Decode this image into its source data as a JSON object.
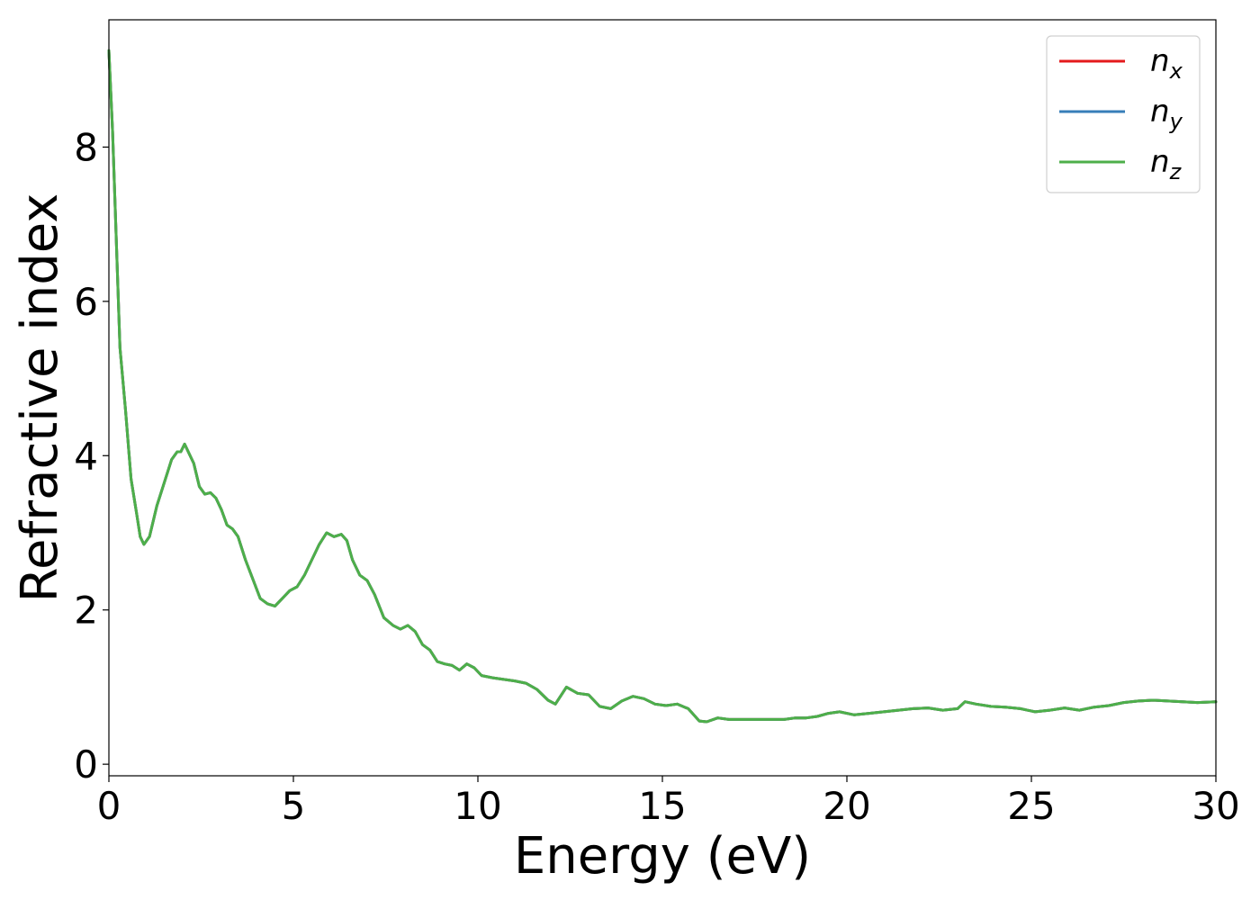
{
  "chart_data": {
    "type": "line",
    "title": "",
    "xlabel": "Energy (eV)",
    "ylabel": "Refractive index",
    "xlim": [
      0,
      30
    ],
    "ylim": [
      -0.15,
      9.65
    ],
    "xticks": [
      0,
      5,
      10,
      15,
      20,
      25,
      30
    ],
    "yticks": [
      0,
      2,
      4,
      6,
      8
    ],
    "grid": false,
    "legend_position": "top-right",
    "x": [
      0,
      0.1,
      0.2,
      0.3,
      0.45,
      0.6,
      0.75,
      0.85,
      0.95,
      1.1,
      1.3,
      1.5,
      1.7,
      1.85,
      1.95,
      2.05,
      2.15,
      2.3,
      2.45,
      2.6,
      2.75,
      2.9,
      3.05,
      3.2,
      3.35,
      3.5,
      3.7,
      3.9,
      4.1,
      4.3,
      4.5,
      4.7,
      4.9,
      5.1,
      5.3,
      5.5,
      5.7,
      5.9,
      6.1,
      6.3,
      6.45,
      6.6,
      6.8,
      7.0,
      7.2,
      7.45,
      7.7,
      7.9,
      8.1,
      8.3,
      8.5,
      8.7,
      8.9,
      9.1,
      9.3,
      9.5,
      9.7,
      9.9,
      10.1,
      10.4,
      10.7,
      11.0,
      11.3,
      11.6,
      11.9,
      12.1,
      12.4,
      12.7,
      13.0,
      13.3,
      13.6,
      13.9,
      14.2,
      14.5,
      14.8,
      15.1,
      15.4,
      15.7,
      16.0,
      16.2,
      16.5,
      16.8,
      17.1,
      17.4,
      17.7,
      18.0,
      18.3,
      18.6,
      18.9,
      19.2,
      19.5,
      19.8,
      20.2,
      20.6,
      21.0,
      21.4,
      21.8,
      22.2,
      22.6,
      23.0,
      23.2,
      23.5,
      23.9,
      24.3,
      24.7,
      25.1,
      25.5,
      25.9,
      26.3,
      26.7,
      27.1,
      27.5,
      27.9,
      28.3,
      28.7,
      29.1,
      29.5,
      30.0
    ],
    "series": [
      {
        "name": "n_x",
        "color": "#e41a1c",
        "y": [
          9.25,
          8.2,
          6.8,
          5.4,
          4.6,
          3.7,
          3.25,
          2.95,
          2.85,
          2.95,
          3.35,
          3.65,
          3.95,
          4.05,
          4.05,
          4.15,
          4.05,
          3.9,
          3.6,
          3.5,
          3.52,
          3.45,
          3.3,
          3.1,
          3.05,
          2.95,
          2.65,
          2.4,
          2.15,
          2.08,
          2.05,
          2.15,
          2.25,
          2.3,
          2.45,
          2.65,
          2.85,
          3.0,
          2.95,
          2.98,
          2.9,
          2.65,
          2.45,
          2.38,
          2.2,
          1.9,
          1.8,
          1.75,
          1.8,
          1.72,
          1.55,
          1.48,
          1.33,
          1.3,
          1.28,
          1.22,
          1.3,
          1.25,
          1.15,
          1.12,
          1.1,
          1.08,
          1.05,
          0.97,
          0.83,
          0.78,
          1.0,
          0.92,
          0.9,
          0.75,
          0.72,
          0.82,
          0.88,
          0.85,
          0.78,
          0.76,
          0.78,
          0.72,
          0.56,
          0.55,
          0.6,
          0.58,
          0.58,
          0.58,
          0.58,
          0.58,
          0.58,
          0.6,
          0.6,
          0.62,
          0.66,
          0.68,
          0.64,
          0.66,
          0.68,
          0.7,
          0.72,
          0.73,
          0.7,
          0.72,
          0.81,
          0.78,
          0.75,
          0.74,
          0.72,
          0.68,
          0.7,
          0.73,
          0.7,
          0.74,
          0.76,
          0.8,
          0.82,
          0.83,
          0.82,
          0.81,
          0.8,
          0.81
        ]
      },
      {
        "name": "n_y",
        "color": "#377eb8",
        "y": [
          9.25,
          8.2,
          6.8,
          5.4,
          4.6,
          3.7,
          3.25,
          2.95,
          2.85,
          2.95,
          3.35,
          3.65,
          3.95,
          4.05,
          4.05,
          4.15,
          4.05,
          3.9,
          3.6,
          3.5,
          3.52,
          3.45,
          3.3,
          3.1,
          3.05,
          2.95,
          2.65,
          2.4,
          2.15,
          2.08,
          2.05,
          2.15,
          2.25,
          2.3,
          2.45,
          2.65,
          2.85,
          3.0,
          2.95,
          2.98,
          2.9,
          2.65,
          2.45,
          2.38,
          2.2,
          1.9,
          1.8,
          1.75,
          1.8,
          1.72,
          1.55,
          1.48,
          1.33,
          1.3,
          1.28,
          1.22,
          1.3,
          1.25,
          1.15,
          1.12,
          1.1,
          1.08,
          1.05,
          0.97,
          0.83,
          0.78,
          1.0,
          0.92,
          0.9,
          0.75,
          0.72,
          0.82,
          0.88,
          0.85,
          0.78,
          0.76,
          0.78,
          0.72,
          0.56,
          0.55,
          0.6,
          0.58,
          0.58,
          0.58,
          0.58,
          0.58,
          0.58,
          0.6,
          0.6,
          0.62,
          0.66,
          0.68,
          0.64,
          0.66,
          0.68,
          0.7,
          0.72,
          0.73,
          0.7,
          0.72,
          0.81,
          0.78,
          0.75,
          0.74,
          0.72,
          0.68,
          0.7,
          0.73,
          0.7,
          0.74,
          0.76,
          0.8,
          0.82,
          0.83,
          0.82,
          0.81,
          0.8,
          0.81
        ]
      },
      {
        "name": "n_z",
        "color": "#4daf4a",
        "y": [
          9.25,
          8.2,
          6.8,
          5.4,
          4.6,
          3.7,
          3.25,
          2.95,
          2.85,
          2.95,
          3.35,
          3.65,
          3.95,
          4.05,
          4.05,
          4.15,
          4.05,
          3.9,
          3.6,
          3.5,
          3.52,
          3.45,
          3.3,
          3.1,
          3.05,
          2.95,
          2.65,
          2.4,
          2.15,
          2.08,
          2.05,
          2.15,
          2.25,
          2.3,
          2.45,
          2.65,
          2.85,
          3.0,
          2.95,
          2.98,
          2.9,
          2.65,
          2.45,
          2.38,
          2.2,
          1.9,
          1.8,
          1.75,
          1.8,
          1.72,
          1.55,
          1.48,
          1.33,
          1.3,
          1.28,
          1.22,
          1.3,
          1.25,
          1.15,
          1.12,
          1.1,
          1.08,
          1.05,
          0.97,
          0.83,
          0.78,
          1.0,
          0.92,
          0.9,
          0.75,
          0.72,
          0.82,
          0.88,
          0.85,
          0.78,
          0.76,
          0.78,
          0.72,
          0.56,
          0.55,
          0.6,
          0.58,
          0.58,
          0.58,
          0.58,
          0.58,
          0.58,
          0.6,
          0.6,
          0.62,
          0.66,
          0.68,
          0.64,
          0.66,
          0.68,
          0.7,
          0.72,
          0.73,
          0.7,
          0.72,
          0.81,
          0.78,
          0.75,
          0.74,
          0.72,
          0.68,
          0.7,
          0.73,
          0.7,
          0.74,
          0.76,
          0.8,
          0.82,
          0.83,
          0.82,
          0.81,
          0.8,
          0.81
        ]
      }
    ],
    "legend": [
      {
        "base": "n",
        "sub": "x",
        "color": "#e41a1c"
      },
      {
        "base": "n",
        "sub": "y",
        "color": "#377eb8"
      },
      {
        "base": "n",
        "sub": "z",
        "color": "#4daf4a"
      }
    ]
  }
}
